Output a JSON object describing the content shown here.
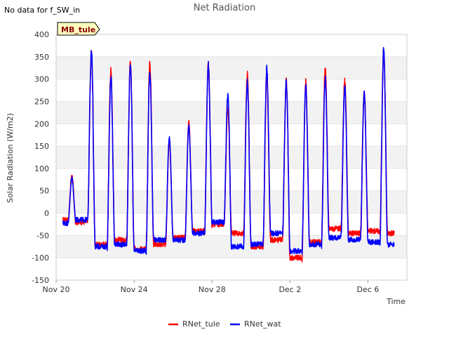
{
  "nodata_note": "No data for f_SW_in",
  "site_badge": "MB_tule",
  "chart_data": {
    "type": "line",
    "title": "Net Radiation",
    "xlabel": "Time",
    "ylabel": "Solar Radiation (W/m2)",
    "ylim": [
      -150,
      400
    ],
    "xlim_days": [
      0,
      18
    ],
    "yticks": [
      -150,
      -100,
      -50,
      0,
      50,
      100,
      150,
      200,
      250,
      300,
      350,
      400
    ],
    "xticks": [
      {
        "day": 0,
        "label": "Nov 20"
      },
      {
        "day": 4,
        "label": "Nov 24"
      },
      {
        "day": 8,
        "label": "Nov 28"
      },
      {
        "day": 12,
        "label": "Dec 2"
      },
      {
        "day": 16,
        "label": "Dec 6"
      }
    ],
    "grid": true,
    "banded_background": true,
    "legend_position": "bottom-center",
    "daily_peaks": [
      {
        "day": 0.85,
        "tule": 82,
        "wat": 78
      },
      {
        "day": 1.85,
        "tule": 358,
        "wat": 360
      },
      {
        "day": 2.85,
        "tule": 318,
        "wat": 305
      },
      {
        "day": 3.85,
        "tule": 336,
        "wat": 336
      },
      {
        "day": 4.85,
        "tule": 336,
        "wat": 318
      },
      {
        "day": 5.85,
        "tule": 160,
        "wat": 168
      },
      {
        "day": 6.85,
        "tule": 203,
        "wat": 195
      },
      {
        "day": 7.85,
        "tule": 335,
        "wat": 330
      },
      {
        "day": 8.85,
        "tule": 235,
        "wat": 260
      },
      {
        "day": 9.85,
        "tule": 310,
        "wat": 295
      },
      {
        "day": 10.85,
        "tule": 305,
        "wat": 322
      },
      {
        "day": 11.85,
        "tule": 295,
        "wat": 290
      },
      {
        "day": 12.85,
        "tule": 293,
        "wat": 285
      },
      {
        "day": 13.85,
        "tule": 326,
        "wat": 300
      },
      {
        "day": 14.85,
        "tule": 297,
        "wat": 280
      },
      {
        "day": 15.85,
        "tule": 273,
        "wat": 268
      },
      {
        "day": 16.85,
        "tule": 368,
        "wat": 365
      }
    ],
    "night_values": [
      {
        "day": 0.4,
        "tule": -15,
        "wat": -22
      },
      {
        "day": 1.4,
        "tule": -20,
        "wat": -15
      },
      {
        "day": 2.4,
        "tule": -70,
        "wat": -75
      },
      {
        "day": 3.4,
        "tule": -60,
        "wat": -70
      },
      {
        "day": 4.4,
        "tule": -80,
        "wat": -85
      },
      {
        "day": 5.4,
        "tule": -70,
        "wat": -60
      },
      {
        "day": 6.4,
        "tule": -55,
        "wat": -60
      },
      {
        "day": 7.4,
        "tule": -40,
        "wat": -45
      },
      {
        "day": 8.4,
        "tule": -25,
        "wat": -20
      },
      {
        "day": 9.4,
        "tule": -45,
        "wat": -75
      },
      {
        "day": 10.4,
        "tule": -75,
        "wat": -70
      },
      {
        "day": 11.4,
        "tule": -60,
        "wat": -45
      },
      {
        "day": 12.4,
        "tule": -100,
        "wat": -85
      },
      {
        "day": 13.4,
        "tule": -65,
        "wat": -70
      },
      {
        "day": 14.4,
        "tule": -35,
        "wat": -55
      },
      {
        "day": 15.4,
        "tule": -45,
        "wat": -60
      },
      {
        "day": 16.4,
        "tule": -40,
        "wat": -65
      },
      {
        "day": 17.3,
        "tule": -45,
        "wat": -70
      }
    ],
    "series": [
      {
        "name": "RNet_tule",
        "key": "tule",
        "color": "#ff0000"
      },
      {
        "name": "RNet_wat",
        "key": "wat",
        "color": "#0000ff"
      }
    ]
  }
}
